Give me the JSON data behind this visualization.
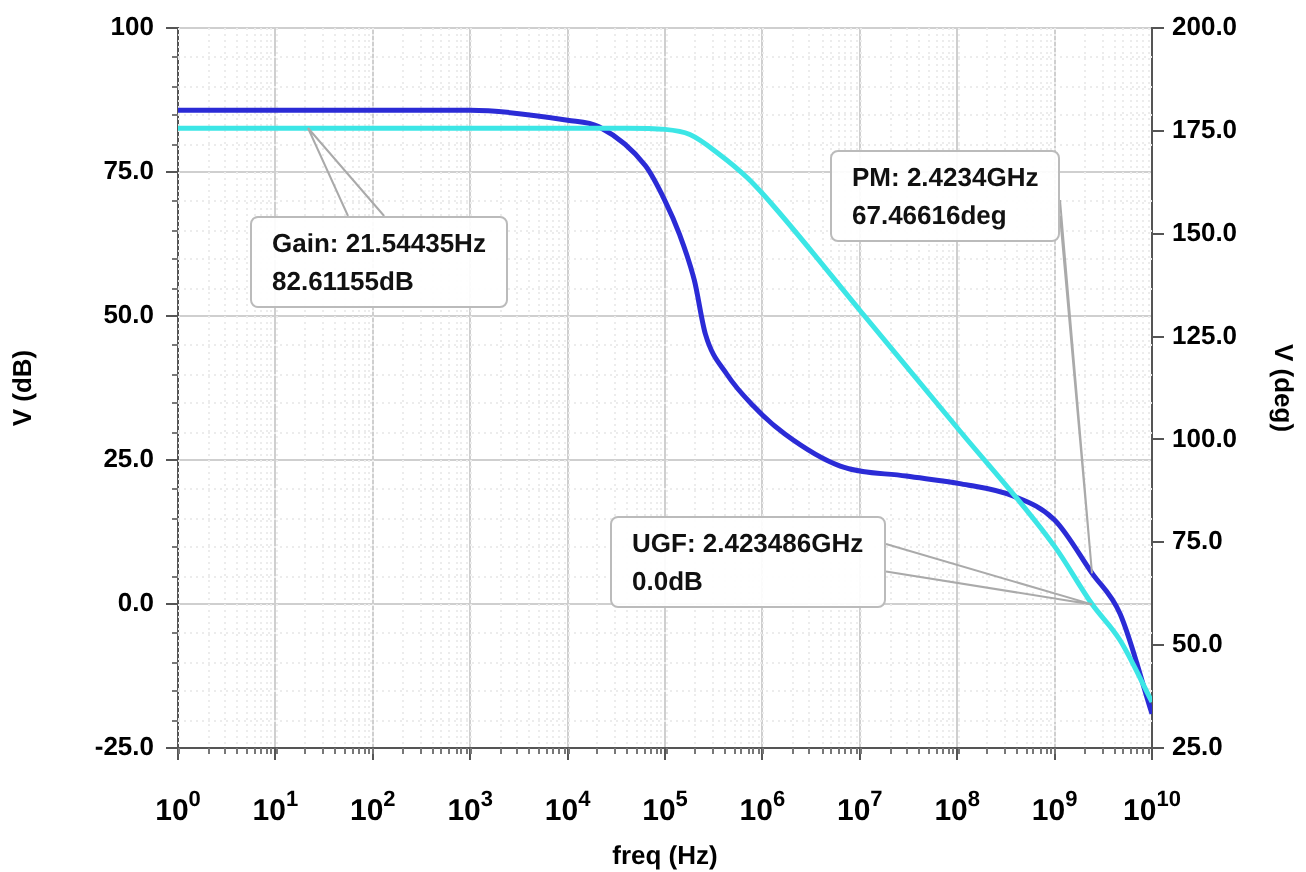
{
  "chart_data": {
    "type": "line",
    "xlabel": "freq (Hz)",
    "ylabel": "V (dB)",
    "y2label": "V (deg)",
    "log": "x",
    "grid": true,
    "legend": false,
    "marker": "none",
    "line_style": "solid",
    "xlim": [
      1,
      10000000000
    ],
    "xticks": [
      {
        "value": 1,
        "label": "10$^{0}$"
      },
      {
        "value": 10,
        "label": "10$^{1}$"
      },
      {
        "value": 100,
        "label": "10$^{2}$"
      },
      {
        "value": 1000,
        "label": "10$^{3}$"
      },
      {
        "value": 10000,
        "label": "10$^{4}$"
      },
      {
        "value": 100000,
        "label": "10$^{5}$"
      },
      {
        "value": 1000000,
        "label": "10$^{6}$"
      },
      {
        "value": 10000000,
        "label": "10$^{7}$"
      },
      {
        "value": 100000000,
        "label": "10$^{8}$"
      },
      {
        "value": 1000000000,
        "label": "10$^{9}$"
      },
      {
        "value": 10000000000,
        "label": "10$^{10}$"
      }
    ],
    "ylim": [
      -25,
      100
    ],
    "yticks": [
      {
        "value": -25,
        "label": "-25.0"
      },
      {
        "value": 0,
        "label": "0.0"
      },
      {
        "value": 25,
        "label": "25.0"
      },
      {
        "value": 50,
        "label": "50.0"
      },
      {
        "value": 75,
        "label": "75.0"
      },
      100
    ],
    "y2lim": [
      25,
      200
    ],
    "y2ticks": [
      {
        "value": 25,
        "label": "25.0"
      },
      {
        "value": 50,
        "label": "50.0"
      },
      {
        "value": 75,
        "label": "75.0"
      },
      {
        "value": 100,
        "label": "100.0"
      },
      {
        "value": 125,
        "label": "125.0"
      },
      {
        "value": 150,
        "label": "150.0"
      },
      {
        "value": 175,
        "label": "175.0"
      },
      {
        "value": 200,
        "label": "200.0"
      }
    ],
    "series": [
      {
        "color": "#3ce6e6",
        "x": [
          1,
          10000,
          40000,
          100000,
          180000,
          360000,
          700000,
          1300000,
          10000000,
          100000000,
          1000000000,
          2420000000,
          4700000000,
          10000000000
        ],
        "values": [
          82.6,
          82.6,
          82.6,
          82.4,
          81.5,
          78.1,
          74,
          69.1,
          51,
          30.6,
          10,
          0,
          -6.3,
          -17
        ]
      },
      {
        "color": "#2b2bd6",
        "axis": "y2",
        "x": [
          1,
          1000,
          10000,
          21000,
          63000,
          100000,
          140000,
          200000,
          260000,
          430000,
          810000,
          1700000,
          6300000,
          30000000,
          110000000,
          380000000,
          1000000000,
          2420000000,
          4700000000,
          10000000000
        ],
        "values": [
          180,
          180,
          177.6,
          176,
          166.5,
          158,
          150,
          138.7,
          125.6,
          115.9,
          108.1,
          101.3,
          93.5,
          91.1,
          89.2,
          86.2,
          80.4,
          67.5,
          57.6,
          33.3
        ]
      }
    ],
    "annotations": [
      "Gain: 21.54435Hz\n82.61155dB",
      "PM: 2.4234GHz\n67.46616deg",
      "UGF: 2.423486GHz\n0.0dB"
    ]
  }
}
